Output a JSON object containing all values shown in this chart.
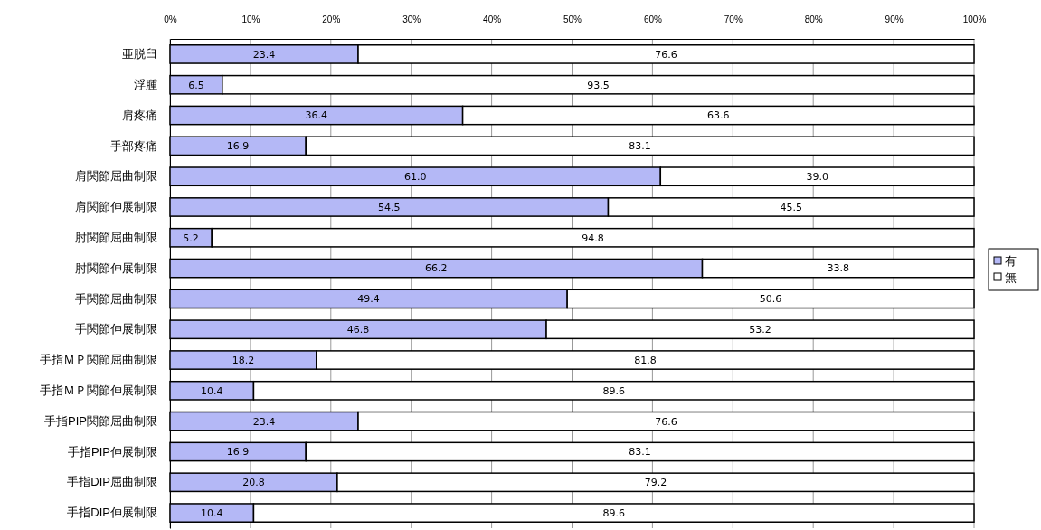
{
  "chart_data": {
    "type": "bar",
    "orientation": "horizontal",
    "stacked": true,
    "grid": "x",
    "legend": "right",
    "categories": [
      "亜脱臼",
      "浮腫",
      "肩疼痛",
      "手部疼痛",
      "肩関節屈曲制限",
      "肩関節伸展制限",
      "肘関節屈曲制限",
      "肘関節伸展制限",
      "手関節屈曲制限",
      "手関節伸展制限",
      "手指ＭＰ関節屈曲制限",
      "手指ＭＰ関節伸展制限",
      "手指PIP関節屈曲制限",
      "手指PIP伸展制限",
      "手指DIP屈曲制限",
      "手指DIP伸展制限"
    ],
    "xlim": [
      0,
      100
    ],
    "xticks": [
      {
        "value": 0,
        "label": "0%"
      },
      {
        "value": 10,
        "label": "10%"
      },
      {
        "value": 20,
        "label": "20%"
      },
      {
        "value": 30,
        "label": "30%"
      },
      {
        "value": 40,
        "label": "40%"
      },
      {
        "value": 50,
        "label": "50%"
      },
      {
        "value": 60,
        "label": "60%"
      },
      {
        "value": 70,
        "label": "70%"
      },
      {
        "value": 80,
        "label": "80%"
      },
      {
        "value": 90,
        "label": "90%"
      },
      {
        "value": 100,
        "label": "100%"
      }
    ],
    "series": [
      {
        "name": "有",
        "color": "#b4b8f6",
        "values": [
          23.4,
          6.5,
          36.4,
          16.9,
          61,
          54.5,
          5.2,
          66.2,
          49.4,
          46.8,
          18.2,
          10.4,
          23.4,
          16.9,
          20.8,
          10.4
        ],
        "value_labels": [
          "23.4",
          "6.5",
          "36.4",
          "16.9",
          "61.0",
          "54.5",
          "5.2",
          "66.2",
          "49.4",
          "46.8",
          "18.2",
          "10.4",
          "23.4",
          "16.9",
          "20.8",
          "10.4"
        ]
      },
      {
        "name": "無",
        "color": "#ffffff",
        "values": [
          76.6,
          93.5,
          63.6,
          83.1,
          39,
          45.5,
          94.8,
          33.8,
          50.6,
          53.2,
          81.8,
          89.6,
          76.6,
          83.1,
          79.2,
          89.6
        ],
        "value_labels": [
          "76.6",
          "93.5",
          "63.6",
          "83.1",
          "39.0",
          "45.5",
          "94.8",
          "33.8",
          "50.6",
          "53.2",
          "81.8",
          "89.6",
          "76.6",
          "83.1",
          "79.2",
          "89.6"
        ]
      }
    ]
  }
}
